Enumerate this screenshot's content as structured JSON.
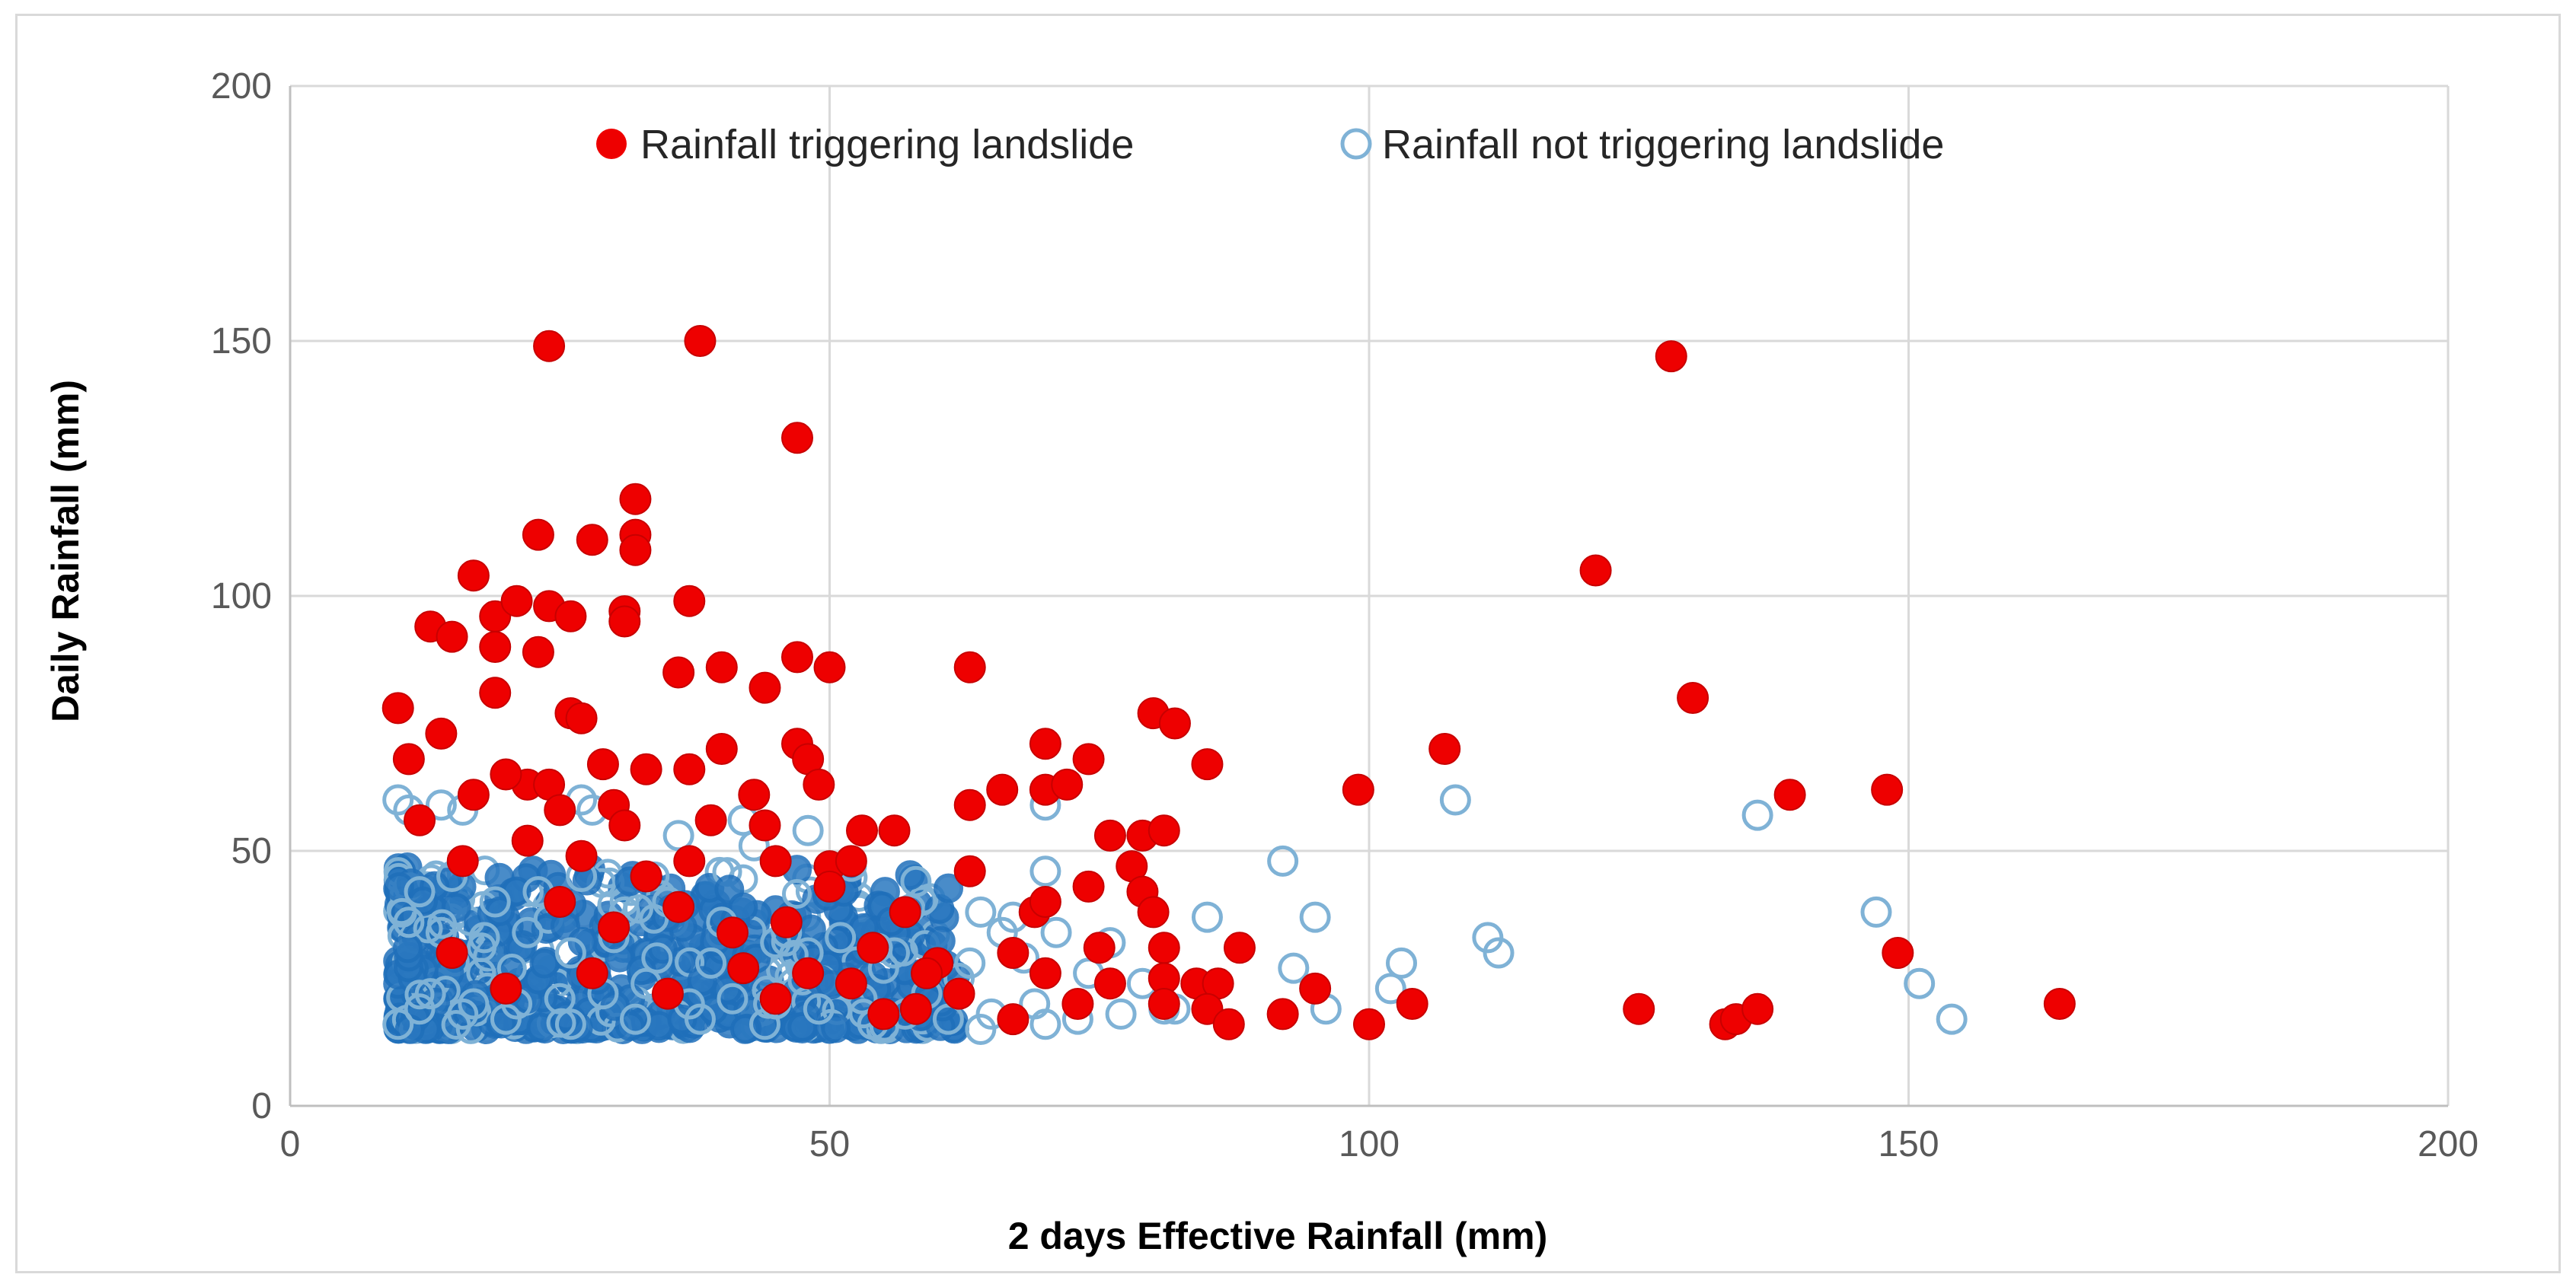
{
  "chart_data": {
    "type": "scatter",
    "title": "",
    "xlabel": "2 days Effective Rainfall (mm)",
    "ylabel": "Daily Rainfall (mm)",
    "xlim": [
      0,
      200
    ],
    "ylim": [
      0,
      200
    ],
    "x_ticks": [
      "0",
      "50",
      "100",
      "150",
      "200"
    ],
    "y_ticks": [
      "0",
      "50",
      "100",
      "150",
      "200"
    ],
    "grid": true,
    "legend_position": "top",
    "colors": {
      "triggering": "#ee0000",
      "not_triggering": "#1f6fba",
      "not_triggering_light": "#7fb2d6",
      "grid": "#d9d9d9",
      "axis": "#bfbfbf"
    },
    "series": [
      {
        "name": "Rainfall triggering landslide",
        "marker": "filled-circle",
        "color": "#ee0000",
        "points": [
          [
            24,
            149
          ],
          [
            38,
            150
          ],
          [
            47,
            131
          ],
          [
            128,
            147
          ],
          [
            32,
            119
          ],
          [
            32,
            112
          ],
          [
            32,
            109
          ],
          [
            23,
            112
          ],
          [
            28,
            111
          ],
          [
            121,
            105
          ],
          [
            17,
            104
          ],
          [
            13,
            94
          ],
          [
            15,
            92
          ],
          [
            19,
            96
          ],
          [
            19,
            90
          ],
          [
            21,
            99
          ],
          [
            23,
            89
          ],
          [
            24,
            98
          ],
          [
            26,
            96
          ],
          [
            31,
            97
          ],
          [
            31,
            95
          ],
          [
            37,
            99
          ],
          [
            36,
            85
          ],
          [
            40,
            86
          ],
          [
            44,
            82
          ],
          [
            47,
            88
          ],
          [
            50,
            86
          ],
          [
            63,
            86
          ],
          [
            10,
            78
          ],
          [
            19,
            81
          ],
          [
            26,
            77
          ],
          [
            27,
            76
          ],
          [
            14,
            73
          ],
          [
            11,
            68
          ],
          [
            22,
            63
          ],
          [
            24,
            63
          ],
          [
            29,
            67
          ],
          [
            33,
            66
          ],
          [
            37,
            66
          ],
          [
            40,
            70
          ],
          [
            43,
            61
          ],
          [
            47,
            71
          ],
          [
            48,
            68
          ],
          [
            49,
            63
          ],
          [
            17,
            61
          ],
          [
            20,
            65
          ],
          [
            25,
            58
          ],
          [
            30,
            59
          ],
          [
            31,
            55
          ],
          [
            39,
            56
          ],
          [
            44,
            55
          ],
          [
            50,
            47
          ],
          [
            52,
            48
          ],
          [
            53,
            54
          ],
          [
            56,
            54
          ],
          [
            63,
            59
          ],
          [
            66,
            62
          ],
          [
            70,
            71
          ],
          [
            70,
            62
          ],
          [
            72,
            63
          ],
          [
            74,
            68
          ],
          [
            76,
            53
          ],
          [
            79,
            53
          ],
          [
            80,
            77
          ],
          [
            82,
            75
          ],
          [
            85,
            67
          ],
          [
            81,
            54
          ],
          [
            99,
            62
          ],
          [
            107,
            70
          ],
          [
            130,
            80
          ],
          [
            139,
            61
          ],
          [
            148,
            62
          ],
          [
            78,
            47
          ],
          [
            79,
            42
          ],
          [
            74,
            43
          ],
          [
            63,
            46
          ],
          [
            57,
            38
          ],
          [
            50,
            43
          ],
          [
            45,
            48
          ],
          [
            33,
            45
          ],
          [
            12,
            56
          ],
          [
            16,
            48
          ],
          [
            22,
            52
          ],
          [
            27,
            49
          ],
          [
            37,
            48
          ],
          [
            69,
            38
          ],
          [
            80,
            38
          ],
          [
            81,
            31
          ],
          [
            88,
            31
          ],
          [
            149,
            30
          ],
          [
            70,
            40
          ],
          [
            54,
            31
          ],
          [
            60,
            28
          ],
          [
            67,
            30
          ],
          [
            75,
            31
          ],
          [
            81,
            25
          ],
          [
            84,
            24
          ],
          [
            86,
            24
          ],
          [
            95,
            23
          ],
          [
            41,
            34
          ],
          [
            46,
            36
          ],
          [
            59,
            26
          ],
          [
            73,
            20
          ],
          [
            85,
            19
          ],
          [
            92,
            18
          ],
          [
            100,
            16
          ],
          [
            104,
            20
          ],
          [
            125,
            19
          ],
          [
            133,
            16
          ],
          [
            134,
            17
          ],
          [
            136,
            19
          ],
          [
            164,
            20
          ],
          [
            81,
            20
          ],
          [
            67,
            17
          ],
          [
            58,
            19
          ],
          [
            52,
            24
          ],
          [
            45,
            21
          ],
          [
            35,
            22
          ],
          [
            28,
            26
          ],
          [
            20,
            23
          ],
          [
            15,
            30
          ],
          [
            25,
            40
          ],
          [
            30,
            35
          ],
          [
            36,
            39
          ],
          [
            42,
            27
          ],
          [
            48,
            26
          ],
          [
            55,
            18
          ],
          [
            62,
            22
          ],
          [
            70,
            26
          ],
          [
            76,
            24
          ],
          [
            87,
            16
          ]
        ]
      },
      {
        "name": "Rainfall not triggering landslide",
        "marker": "open-circle",
        "color": "#7fb2d6",
        "points": [
          [
            10,
            60
          ],
          [
            11,
            58
          ],
          [
            14,
            59
          ],
          [
            16,
            58
          ],
          [
            27,
            60
          ],
          [
            28,
            58
          ],
          [
            36,
            53
          ],
          [
            42,
            56
          ],
          [
            43,
            51
          ],
          [
            48,
            54
          ],
          [
            52,
            47
          ],
          [
            58,
            44
          ],
          [
            64,
            38
          ],
          [
            67,
            37
          ],
          [
            70,
            46
          ],
          [
            70,
            59
          ],
          [
            66,
            34
          ],
          [
            76,
            32
          ],
          [
            85,
            37
          ],
          [
            92,
            48
          ],
          [
            95,
            37
          ],
          [
            93,
            27
          ],
          [
            96,
            19
          ],
          [
            102,
            23
          ],
          [
            103,
            28
          ],
          [
            108,
            60
          ],
          [
            111,
            33
          ],
          [
            112,
            30
          ],
          [
            136,
            57
          ],
          [
            147,
            38
          ],
          [
            151,
            24
          ],
          [
            154,
            17
          ],
          [
            92,
            18
          ],
          [
            82,
            19
          ],
          [
            70,
            16
          ],
          [
            63,
            28
          ],
          [
            59,
            22
          ],
          [
            55,
            27
          ],
          [
            48,
            30
          ],
          [
            45,
            32
          ],
          [
            39,
            28
          ],
          [
            34,
            29
          ],
          [
            30,
            33
          ],
          [
            26,
            30
          ],
          [
            22,
            34
          ],
          [
            18,
            33
          ],
          [
            14,
            34
          ],
          [
            11,
            36
          ],
          [
            13,
            22
          ],
          [
            17,
            20
          ],
          [
            21,
            20
          ],
          [
            25,
            21
          ],
          [
            29,
            22
          ],
          [
            33,
            24
          ],
          [
            37,
            20
          ],
          [
            41,
            21
          ],
          [
            45,
            20
          ],
          [
            49,
            19
          ],
          [
            53,
            21
          ],
          [
            57,
            18
          ],
          [
            61,
            17
          ],
          [
            65,
            18
          ],
          [
            69,
            20
          ],
          [
            73,
            17
          ],
          [
            77,
            18
          ],
          [
            81,
            19
          ],
          [
            64,
            15
          ],
          [
            54,
            16
          ],
          [
            44,
            16
          ],
          [
            38,
            17
          ],
          [
            32,
            17
          ],
          [
            26,
            16
          ],
          [
            20,
            17
          ],
          [
            16,
            18
          ],
          [
            12,
            19
          ],
          [
            10,
            16
          ],
          [
            19,
            40
          ],
          [
            23,
            42
          ],
          [
            27,
            45
          ],
          [
            31,
            38
          ],
          [
            35,
            40
          ],
          [
            15,
            45
          ],
          [
            12,
            42
          ],
          [
            40,
            36
          ],
          [
            46,
            34
          ],
          [
            51,
            33
          ],
          [
            56,
            30
          ],
          [
            62,
            25
          ],
          [
            68,
            29
          ],
          [
            74,
            26
          ],
          [
            79,
            24
          ],
          [
            71,
            34
          ]
        ]
      }
    ]
  }
}
